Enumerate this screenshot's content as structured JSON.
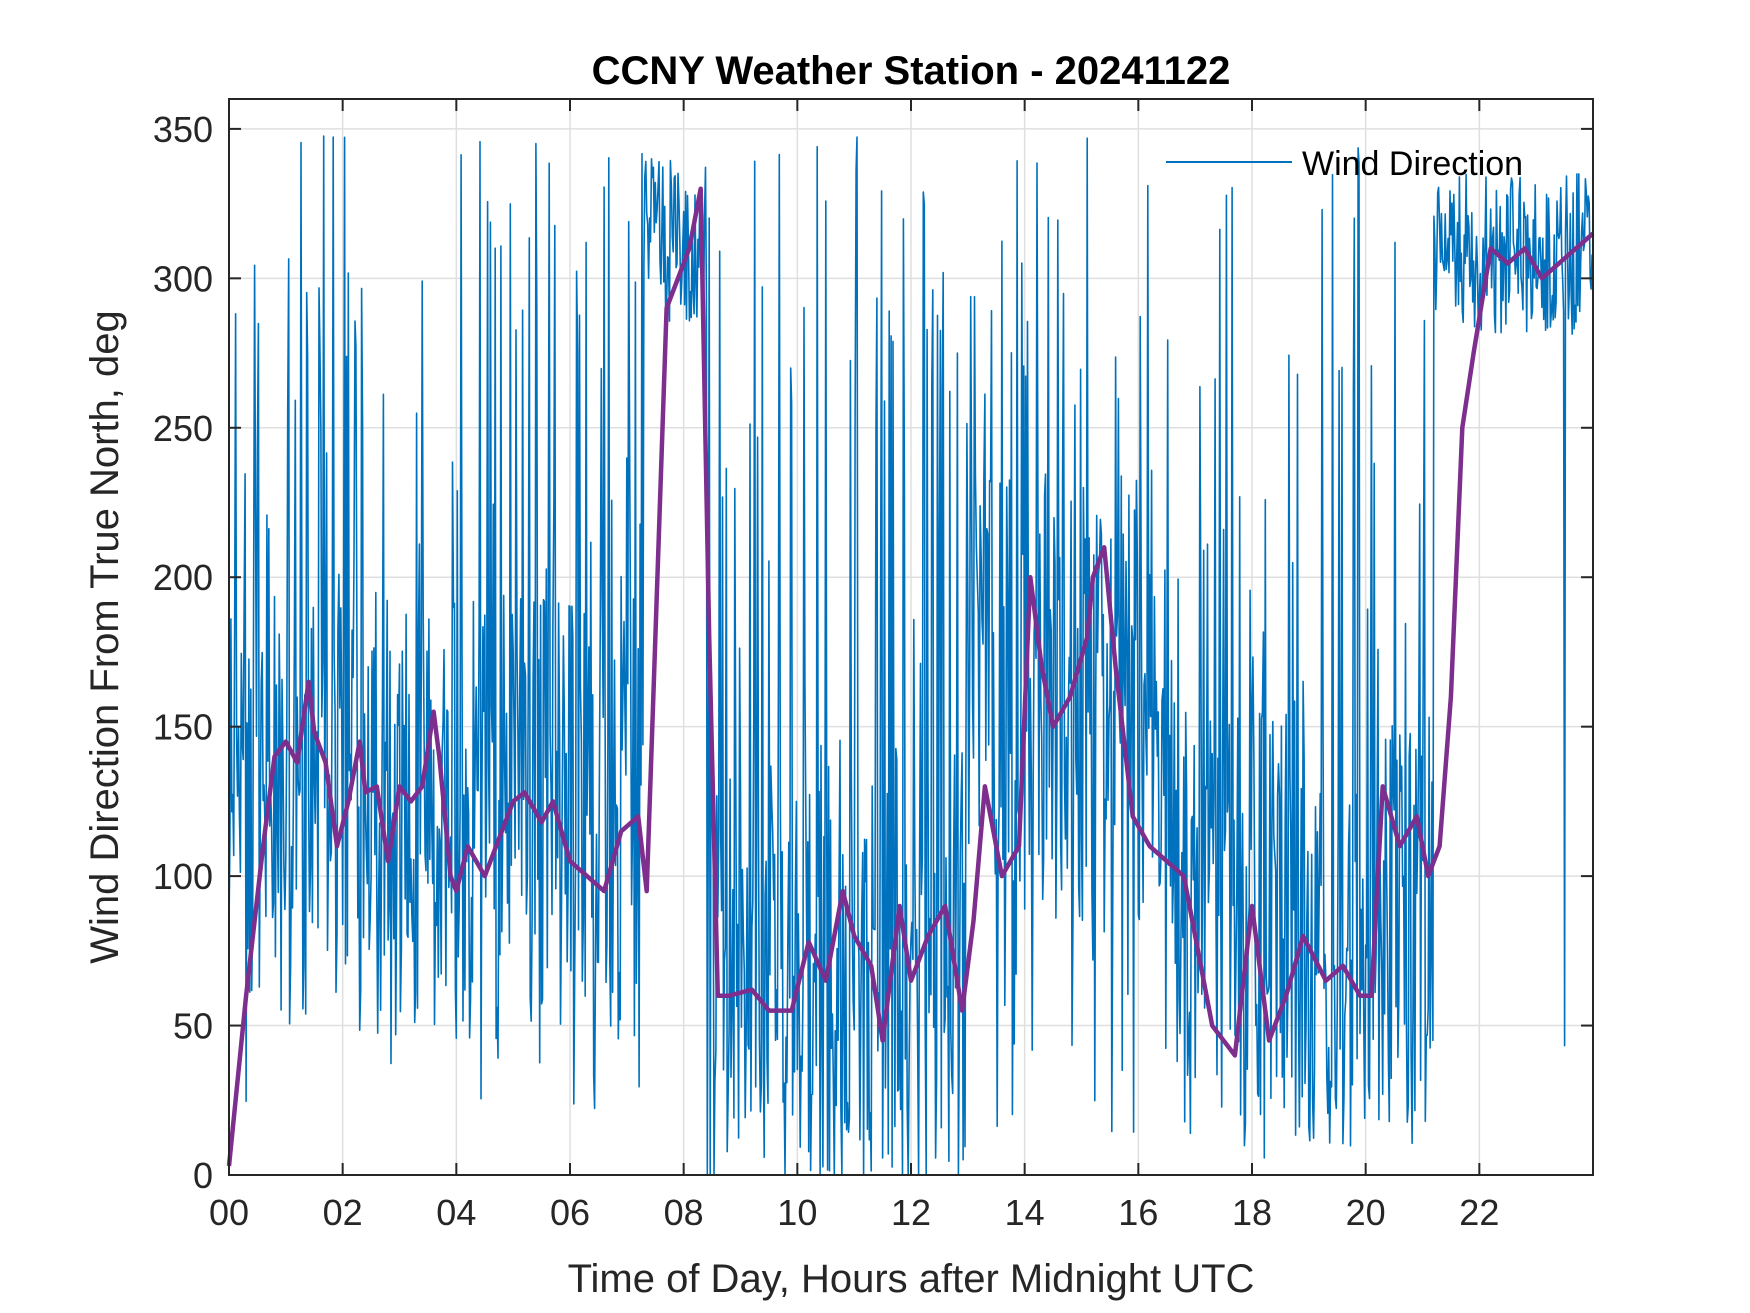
{
  "chart_data": {
    "type": "line",
    "title": "CCNY Weather Station - 20241122",
    "xlabel": "Time of Day, Hours after Midnight UTC",
    "ylabel": "Wind Direction From True North, deg",
    "xlim": [
      0,
      24
    ],
    "ylim": [
      0,
      360
    ],
    "x_ticks": [
      0,
      2,
      4,
      6,
      8,
      10,
      12,
      14,
      16,
      18,
      20,
      22
    ],
    "x_tick_labels": [
      "00",
      "02",
      "04",
      "06",
      "08",
      "10",
      "12",
      "14",
      "16",
      "18",
      "20",
      "22"
    ],
    "y_ticks": [
      0,
      50,
      100,
      150,
      200,
      250,
      300,
      350
    ],
    "y_tick_labels": [
      "0",
      "50",
      "100",
      "150",
      "200",
      "250",
      "300",
      "350"
    ],
    "grid": true,
    "legend_position": "top-right",
    "series": [
      {
        "name": "Wind Direction",
        "color": "#0072BD",
        "style": "raw 1-minute samples, highly variable",
        "segments": [
          {
            "x_range": [
              0,
              7.3
            ],
            "y_range": [
              0,
              355
            ],
            "typical_low": 20,
            "typical_high": 350,
            "center": 120
          },
          {
            "x_range": [
              7.3,
              8.4
            ],
            "y_range": [
              285,
              345
            ],
            "typical_low": 285,
            "typical_high": 340,
            "center": 315
          },
          {
            "x_range": [
              8.4,
              13.0
            ],
            "y_range": [
              0,
              355
            ],
            "typical_low": 5,
            "typical_high": 350,
            "center": 70
          },
          {
            "x_range": [
              13.0,
              16.5
            ],
            "y_range": [
              0,
              355
            ],
            "typical_low": 5,
            "typical_high": 350,
            "center": 160
          },
          {
            "x_range": [
              16.5,
              21.2
            ],
            "y_range": [
              0,
              355
            ],
            "typical_low": 5,
            "typical_high": 350,
            "center": 80
          },
          {
            "x_range": [
              21.2,
              24
            ],
            "y_range": [
              20,
              355
            ],
            "typical_low": 280,
            "typical_high": 335,
            "center": 310
          }
        ]
      },
      {
        "name": "",
        "color": "#7E2F8E",
        "style": "smoothed running mean",
        "x": [
          0.0,
          0.3,
          0.6,
          0.8,
          1.0,
          1.2,
          1.4,
          1.5,
          1.7,
          1.9,
          2.1,
          2.3,
          2.4,
          2.6,
          2.8,
          3.0,
          3.2,
          3.4,
          3.6,
          3.7,
          3.9,
          4.0,
          4.2,
          4.5,
          4.8,
          5.0,
          5.2,
          5.5,
          5.7,
          6.0,
          6.3,
          6.6,
          6.9,
          7.2,
          7.35,
          7.7,
          7.9,
          8.1,
          8.3,
          8.45,
          8.6,
          8.8,
          9.2,
          9.5,
          9.9,
          10.2,
          10.5,
          10.8,
          11.0,
          11.3,
          11.5,
          11.8,
          12.0,
          12.3,
          12.6,
          12.9,
          13.1,
          13.3,
          13.6,
          13.9,
          14.1,
          14.3,
          14.5,
          14.8,
          15.1,
          15.2,
          15.4,
          15.6,
          15.9,
          16.2,
          16.5,
          16.8,
          17.0,
          17.3,
          17.7,
          18.0,
          18.3,
          18.6,
          18.9,
          19.3,
          19.6,
          19.9,
          20.1,
          20.3,
          20.6,
          20.9,
          21.1,
          21.3,
          21.5,
          21.7,
          21.9,
          22.2,
          22.5,
          22.8,
          23.1,
          23.4,
          23.7,
          24.0
        ],
        "y": [
          3,
          60,
          110,
          140,
          145,
          138,
          165,
          148,
          138,
          110,
          125,
          145,
          128,
          130,
          105,
          130,
          125,
          130,
          155,
          140,
          100,
          95,
          110,
          100,
          115,
          125,
          128,
          118,
          125,
          105,
          100,
          95,
          115,
          120,
          95,
          290,
          300,
          310,
          330,
          180,
          60,
          60,
          62,
          55,
          55,
          78,
          65,
          95,
          80,
          70,
          45,
          90,
          65,
          80,
          90,
          55,
          85,
          130,
          100,
          110,
          200,
          170,
          150,
          160,
          180,
          200,
          210,
          170,
          120,
          110,
          105,
          100,
          80,
          50,
          40,
          90,
          45,
          60,
          80,
          65,
          70,
          60,
          60,
          130,
          110,
          120,
          100,
          110,
          160,
          250,
          275,
          310,
          305,
          310,
          300,
          305,
          310,
          315
        ]
      }
    ]
  }
}
